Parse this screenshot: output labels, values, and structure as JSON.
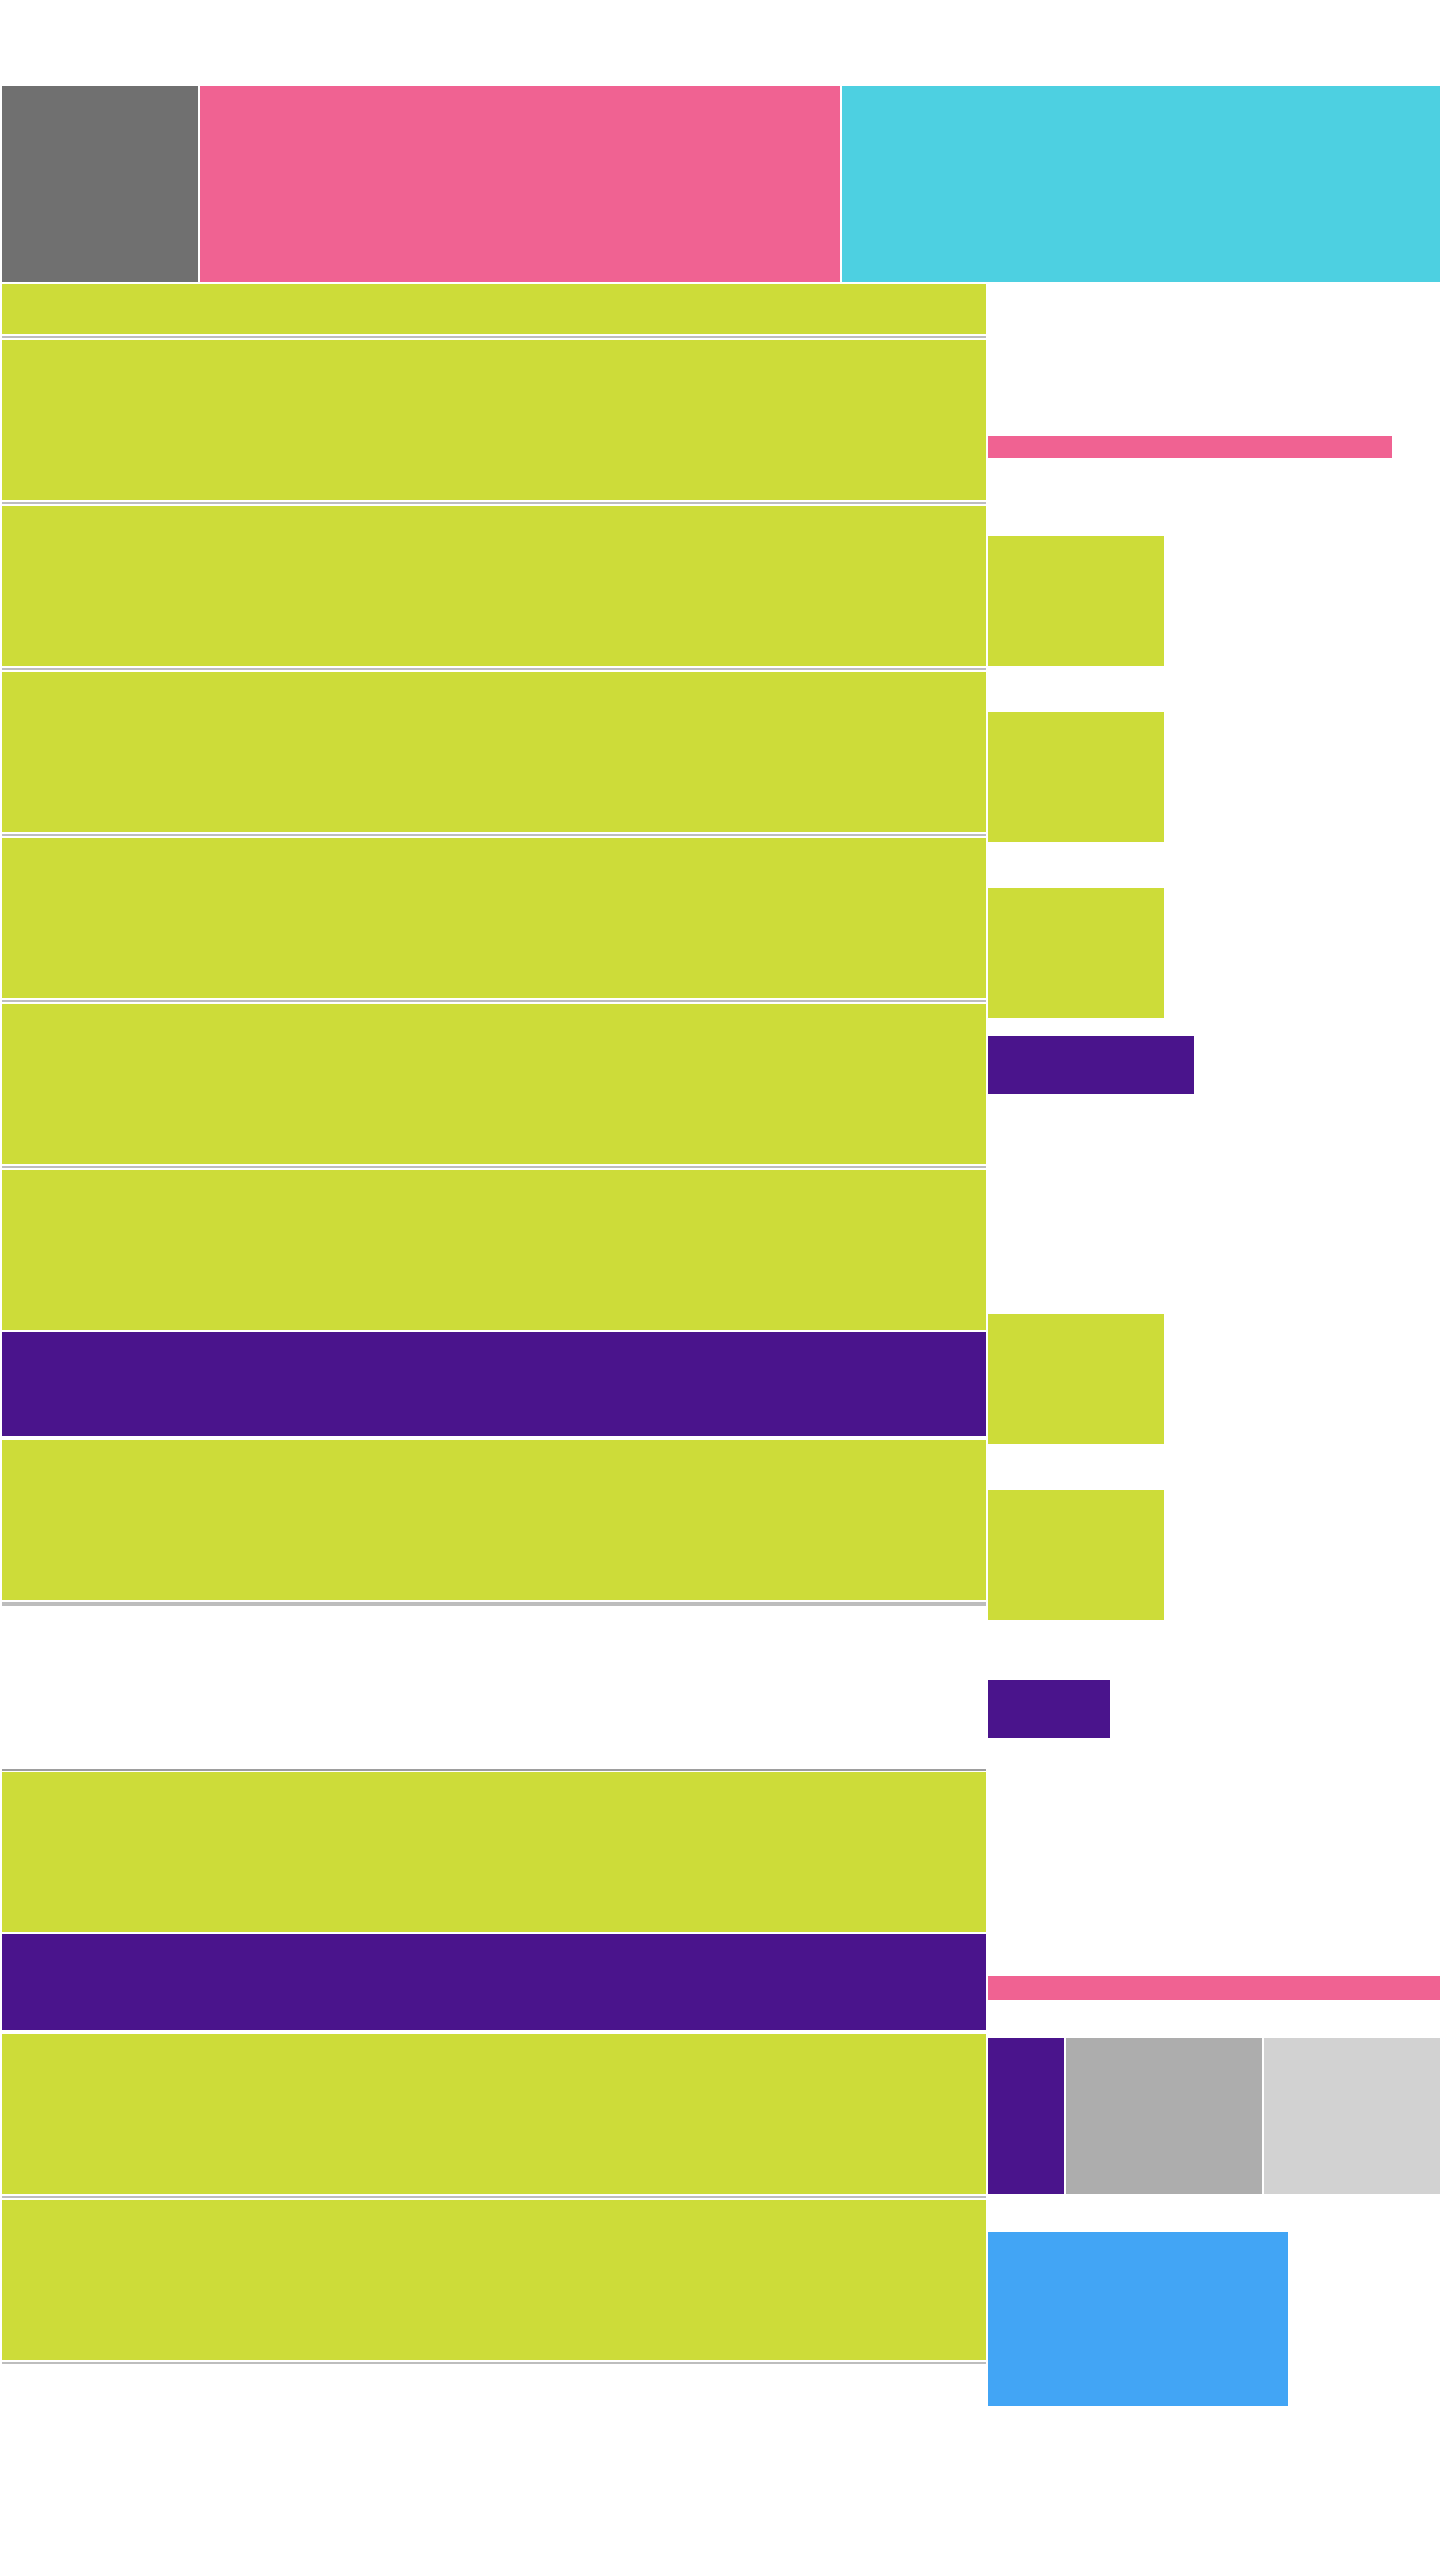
{
  "colors": {
    "gray": "#707070",
    "pink": "#f06292",
    "cyan": "#4dd0e1",
    "lime": "#cddc39",
    "purple": "#4a148c",
    "light_gray": "#adadad",
    "lighter_gray": "#d2d2d2",
    "blue": "#42a5f5",
    "divider": "#bdbdbd"
  },
  "header": {
    "avatar_block": "",
    "title_block": "",
    "banner_block": ""
  },
  "list": {
    "rows": [
      "",
      "",
      "",
      "",
      "",
      "",
      "",
      "",
      "",
      "",
      "",
      ""
    ],
    "separators": [
      "",
      ""
    ]
  },
  "sidebar": {
    "heading": "",
    "cards": [
      "",
      "",
      "",
      "",
      ""
    ],
    "buttons": [
      "",
      ""
    ],
    "footer_bar": "",
    "tiles": [
      "",
      "",
      ""
    ],
    "action_card": ""
  }
}
